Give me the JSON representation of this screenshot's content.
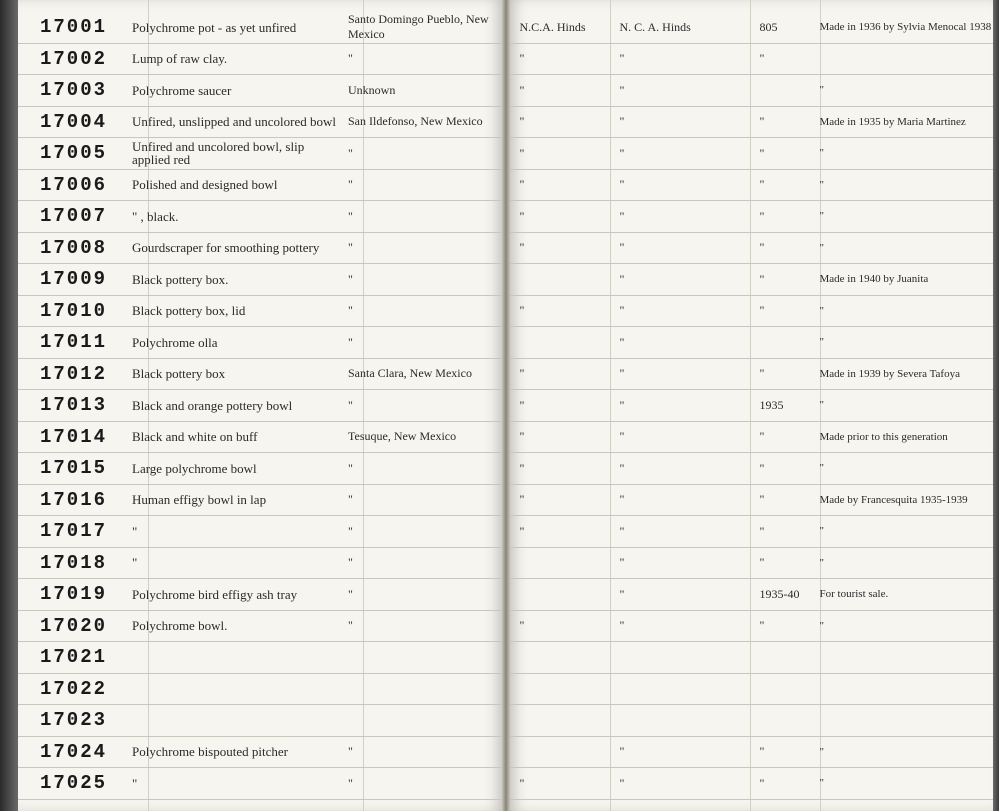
{
  "rows": [
    {
      "num": "17001",
      "desc": "Polychrome pot - as yet unfired",
      "loc": "Santo Domingo Pueblo, New Mexico",
      "c1": "N.C.A. Hinds",
      "c2": "N. C. A. Hinds",
      "c3": "805",
      "c4": "Made in 1936 by Sylvia Menocal 1938"
    },
    {
      "num": "17002",
      "desc": "Lump of raw clay.",
      "loc": "\"",
      "c1": "\"",
      "c2": "\"",
      "c3": "\"",
      "c4": ""
    },
    {
      "num": "17003",
      "desc": "Polychrome saucer",
      "loc": "Unknown",
      "c1": "\"",
      "c2": "\"",
      "c3": "",
      "c4": "\""
    },
    {
      "num": "17004",
      "desc": "Unfired, unslipped and uncolored bowl",
      "loc": "San Ildefonso, New Mexico",
      "c1": "\"",
      "c2": "\"",
      "c3": "\"",
      "c4": "Made in 1935 by Maria Martinez"
    },
    {
      "num": "17005",
      "desc": "Unfired and uncolored bowl, slip applied red",
      "loc": "\"",
      "c1": "\"",
      "c2": "\"",
      "c3": "\"",
      "c4": "\""
    },
    {
      "num": "17006",
      "desc": "Polished and designed bowl",
      "loc": "\"",
      "c1": "\"",
      "c2": "\"",
      "c3": "\"",
      "c4": "\""
    },
    {
      "num": "17007",
      "desc": "\" , black.",
      "loc": "\"",
      "c1": "\"",
      "c2": "\"",
      "c3": "\"",
      "c4": "\""
    },
    {
      "num": "17008",
      "desc": "Gourdscraper for smoothing pottery",
      "loc": "\"",
      "c1": "\"",
      "c2": "\"",
      "c3": "\"",
      "c4": "\""
    },
    {
      "num": "17009",
      "desc": "Black pottery box.",
      "loc": "\"",
      "c1": "",
      "c2": "\"",
      "c3": "\"",
      "c4": "Made in 1940 by Juanita"
    },
    {
      "num": "17010",
      "desc": "Black pottery box, lid",
      "loc": "\"",
      "c1": "\"",
      "c2": "\"",
      "c3": "\"",
      "c4": "\""
    },
    {
      "num": "17011",
      "desc": "Polychrome olla",
      "loc": "\"",
      "c1": "",
      "c2": "\"",
      "c3": "",
      "c4": "\""
    },
    {
      "num": "17012",
      "desc": "Black pottery box",
      "loc": "Santa Clara, New Mexico",
      "c1": "\"",
      "c2": "\"",
      "c3": "\"",
      "c4": "Made in 1939 by Severa Tafoya"
    },
    {
      "num": "17013",
      "desc": "Black and orange pottery bowl",
      "loc": "\"",
      "c1": "\"",
      "c2": "\"",
      "c3": "1935",
      "c4": "\""
    },
    {
      "num": "17014",
      "desc": "Black and white on buff",
      "loc": "Tesuque, New Mexico",
      "c1": "\"",
      "c2": "\"",
      "c3": "\"",
      "c4": "Made prior to this generation"
    },
    {
      "num": "17015",
      "desc": "Large polychrome bowl",
      "loc": "\"",
      "c1": "\"",
      "c2": "\"",
      "c3": "\"",
      "c4": "\""
    },
    {
      "num": "17016",
      "desc": "Human effigy bowl in lap",
      "loc": "\"",
      "c1": "\"",
      "c2": "\"",
      "c3": "\"",
      "c4": "Made by Francesquita 1935-1939"
    },
    {
      "num": "17017",
      "desc": "\"",
      "loc": "\"",
      "c1": "\"",
      "c2": "\"",
      "c3": "\"",
      "c4": "\""
    },
    {
      "num": "17018",
      "desc": "\"",
      "loc": "\"",
      "c1": "",
      "c2": "\"",
      "c3": "\"",
      "c4": "\""
    },
    {
      "num": "17019",
      "desc": "Polychrome bird effigy ash tray",
      "loc": "\"",
      "c1": "",
      "c2": "\"",
      "c3": "1935-40",
      "c4": "For tourist sale."
    },
    {
      "num": "17020",
      "desc": "Polychrome bowl.",
      "loc": "\"",
      "c1": "\"",
      "c2": "\"",
      "c3": "\"",
      "c4": "\""
    },
    {
      "num": "17021",
      "desc": "",
      "loc": "",
      "c1": "",
      "c2": "",
      "c3": "",
      "c4": ""
    },
    {
      "num": "17022",
      "desc": "",
      "loc": "",
      "c1": "",
      "c2": "",
      "c3": "",
      "c4": ""
    },
    {
      "num": "17023",
      "desc": "",
      "loc": "",
      "c1": "",
      "c2": "",
      "c3": "",
      "c4": ""
    },
    {
      "num": "17024",
      "desc": "Polychrome bispouted pitcher",
      "loc": "\"",
      "c1": "",
      "c2": "\"",
      "c3": "\"",
      "c4": "\""
    },
    {
      "num": "17025",
      "desc": "\"",
      "loc": "\"",
      "c1": "\"",
      "c2": "\"",
      "c3": "\"",
      "c4": "\""
    }
  ],
  "left_vlines": [
    130,
    345
  ],
  "right_vlines": [
    100,
    240,
    310
  ]
}
